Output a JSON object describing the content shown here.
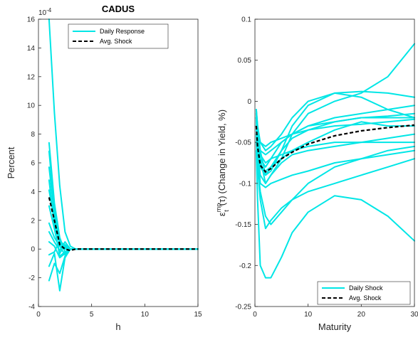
{
  "chart_data": [
    {
      "type": "line",
      "title": "CADUS",
      "xlabel": "h",
      "ylabel": "Percent",
      "y_exponent_label": "10",
      "y_exponent_power": "-4",
      "xlim": [
        0,
        15
      ],
      "ylim": [
        -4,
        16
      ],
      "xticks": [
        "0",
        "5",
        "10",
        "15"
      ],
      "yticks": [
        "-4",
        "-2",
        "0",
        "2",
        "4",
        "6",
        "8",
        "10",
        "12",
        "14",
        "16"
      ],
      "xtick_values": [
        0,
        5,
        10,
        15
      ],
      "ytick_values": [
        -4,
        -2,
        0,
        2,
        4,
        6,
        8,
        10,
        12,
        14,
        16
      ],
      "legend_position": "top-center",
      "series_color": "#00e6e6",
      "avg_color": "#000000",
      "legend": [
        {
          "label": "Daily Response",
          "style": "solid",
          "color": "#00e6e6"
        },
        {
          "label": "Avg. Shock",
          "style": "dashed",
          "color": "#000000"
        }
      ],
      "series": [
        {
          "x": [
            1,
            1.5,
            2,
            2.5,
            3,
            3.5,
            4,
            15
          ],
          "y": [
            16,
            9.5,
            4.4,
            1.2,
            0.2,
            0,
            0,
            0
          ]
        },
        {
          "x": [
            1,
            1.5,
            2,
            2.5,
            3,
            3.5,
            4,
            15
          ],
          "y": [
            7.4,
            3.2,
            0.8,
            -0.2,
            0,
            0,
            0,
            0
          ]
        },
        {
          "x": [
            1,
            1.5,
            2,
            2.5,
            3,
            3.5,
            4,
            15
          ],
          "y": [
            6.8,
            2.8,
            0.5,
            0.1,
            0,
            0,
            0,
            0
          ]
        },
        {
          "x": [
            1,
            1.5,
            2,
            2.5,
            3,
            3.5,
            4,
            15
          ],
          "y": [
            5.7,
            2.4,
            0.4,
            0.2,
            0,
            0,
            0,
            0
          ]
        },
        {
          "x": [
            1,
            1.5,
            2,
            2.5,
            3,
            3.5,
            4,
            15
          ],
          "y": [
            4.8,
            1.6,
            -0.5,
            -0.2,
            0,
            0,
            0,
            0
          ]
        },
        {
          "x": [
            1,
            1.5,
            2,
            2.5,
            3,
            3.5,
            4,
            15
          ],
          "y": [
            4.1,
            2.0,
            0.3,
            0,
            0,
            0,
            0,
            0
          ]
        },
        {
          "x": [
            1,
            1.5,
            2,
            2.5,
            3,
            3.5,
            4,
            15
          ],
          "y": [
            3.0,
            1.4,
            -0.3,
            0.3,
            0,
            0,
            0,
            0
          ]
        },
        {
          "x": [
            1,
            1.5,
            2,
            2.5,
            3,
            3.5,
            4,
            15
          ],
          "y": [
            1.8,
            0.8,
            0.2,
            -0.4,
            0,
            0,
            0,
            0
          ]
        },
        {
          "x": [
            1,
            1.5,
            2,
            2.5,
            3,
            3.5,
            4,
            15
          ],
          "y": [
            1.2,
            0.5,
            -0.1,
            0.5,
            0,
            0,
            0,
            0
          ]
        },
        {
          "x": [
            1,
            1.5,
            2,
            2.5,
            3,
            3.5,
            4,
            15
          ],
          "y": [
            0.5,
            0.2,
            -0.6,
            -0.3,
            0,
            0,
            0,
            0
          ]
        },
        {
          "x": [
            1,
            1.5,
            2,
            2.5,
            3,
            3.5,
            4,
            15
          ],
          "y": [
            -0.4,
            -0.2,
            0.6,
            0.2,
            0,
            0,
            0,
            0
          ]
        },
        {
          "x": [
            1,
            1.5,
            2,
            2.5,
            3,
            3.5,
            4,
            15
          ],
          "y": [
            -1.2,
            -0.3,
            -2.9,
            -0.6,
            0,
            0,
            0,
            0
          ]
        },
        {
          "x": [
            1,
            1.5,
            2,
            2.5,
            3,
            3.5,
            4,
            15
          ],
          "y": [
            -2.2,
            -1.0,
            -1.7,
            -0.5,
            0,
            0,
            0,
            0
          ]
        }
      ],
      "avg": {
        "x": [
          1,
          1.5,
          2,
          2.5,
          3,
          3.5,
          4,
          15
        ],
        "y": [
          3.6,
          2.0,
          0.3,
          0,
          -0.1,
          0,
          0,
          0
        ]
      }
    },
    {
      "type": "line",
      "title": "",
      "xlabel": "Maturity",
      "ylabel": "(Change in Yield, %)",
      "ylabel_symbol": "ε",
      "ylabel_sup": "mp",
      "ylabel_sub": "t",
      "ylabel_arg": "(τ)",
      "xlim": [
        0,
        30
      ],
      "ylim": [
        -0.25,
        0.1
      ],
      "xticks": [
        "0",
        "10",
        "20",
        "30"
      ],
      "yticks": [
        "-0.25",
        "-0.2",
        "-0.15",
        "-0.1",
        "-0.05",
        "0",
        "0.05",
        "0.1"
      ],
      "xtick_values": [
        0,
        10,
        20,
        30
      ],
      "ytick_values": [
        -0.25,
        -0.2,
        -0.15,
        -0.1,
        -0.05,
        0,
        0.05,
        0.1
      ],
      "legend_position": "bottom-right",
      "series_color": "#00e6e6",
      "avg_color": "#000000",
      "legend": [
        {
          "label": "Daily Shock",
          "style": "solid",
          "color": "#00e6e6"
        },
        {
          "label": "Avg. Shock",
          "style": "dashed",
          "color": "#000000"
        }
      ],
      "series": [
        {
          "x": [
            0.25,
            0.5,
            1,
            2,
            3,
            5,
            7,
            10,
            15,
            20,
            25,
            30
          ],
          "y": [
            -0.01,
            -0.03,
            -0.06,
            -0.09,
            -0.085,
            -0.06,
            -0.03,
            -0.005,
            0.01,
            0.012,
            0.01,
            0.005
          ]
        },
        {
          "x": [
            0.25,
            0.5,
            1,
            2,
            3,
            5,
            7,
            10,
            15,
            20,
            25,
            30
          ],
          "y": [
            -0.015,
            -0.04,
            -0.07,
            -0.1,
            -0.09,
            -0.07,
            -0.04,
            -0.015,
            0,
            0.01,
            0.03,
            0.07
          ]
        },
        {
          "x": [
            0.25,
            0.5,
            1,
            2,
            3,
            5,
            7,
            10,
            15,
            20,
            25,
            30
          ],
          "y": [
            -0.02,
            -0.04,
            -0.06,
            -0.065,
            -0.06,
            -0.05,
            -0.04,
            -0.03,
            -0.02,
            -0.015,
            -0.01,
            -0.005
          ]
        },
        {
          "x": [
            0.25,
            0.5,
            1,
            2,
            3,
            5,
            7,
            10,
            15,
            20,
            25,
            30
          ],
          "y": [
            -0.02,
            -0.05,
            -0.08,
            -0.09,
            -0.08,
            -0.06,
            -0.045,
            -0.035,
            -0.025,
            -0.02,
            -0.018,
            -0.015
          ]
        },
        {
          "x": [
            0.25,
            0.5,
            1,
            2,
            3,
            5,
            7,
            10,
            15,
            20,
            25,
            30
          ],
          "y": [
            -0.03,
            -0.05,
            -0.07,
            -0.08,
            -0.07,
            -0.05,
            -0.04,
            -0.03,
            -0.025,
            -0.02,
            -0.02,
            -0.02
          ]
        },
        {
          "x": [
            0.25,
            0.5,
            1,
            2,
            3,
            5,
            7,
            10,
            15,
            20,
            25,
            30
          ],
          "y": [
            -0.03,
            -0.06,
            -0.09,
            -0.1,
            -0.09,
            -0.075,
            -0.065,
            -0.06,
            -0.055,
            -0.05,
            -0.045,
            -0.04
          ]
        },
        {
          "x": [
            0.25,
            0.5,
            1,
            2,
            3,
            5,
            7,
            10,
            15,
            20,
            25,
            30
          ],
          "y": [
            -0.04,
            -0.06,
            -0.08,
            -0.085,
            -0.08,
            -0.07,
            -0.06,
            -0.055,
            -0.05,
            -0.05,
            -0.05,
            -0.05
          ]
        },
        {
          "x": [
            0.25,
            0.5,
            1,
            2,
            3,
            5,
            7,
            10,
            15,
            20,
            25,
            30
          ],
          "y": [
            -0.02,
            -0.06,
            -0.1,
            -0.105,
            -0.1,
            -0.095,
            -0.09,
            -0.085,
            -0.075,
            -0.07,
            -0.065,
            -0.06
          ]
        },
        {
          "x": [
            0.25,
            0.5,
            1,
            2,
            3,
            5,
            7,
            10,
            15,
            20,
            25,
            30
          ],
          "y": [
            -0.05,
            -0.08,
            -0.11,
            -0.14,
            -0.15,
            -0.135,
            -0.12,
            -0.1,
            -0.08,
            -0.07,
            -0.06,
            -0.055
          ]
        },
        {
          "x": [
            0.25,
            0.5,
            1,
            2,
            3,
            5,
            7,
            10,
            15,
            20,
            25,
            30
          ],
          "y": [
            -0.04,
            -0.08,
            -0.12,
            -0.155,
            -0.145,
            -0.13,
            -0.12,
            -0.11,
            -0.1,
            -0.09,
            -0.08,
            -0.07
          ]
        },
        {
          "x": [
            0.25,
            0.5,
            1,
            2,
            3,
            5,
            7,
            10,
            15,
            20,
            25,
            30
          ],
          "y": [
            -0.06,
            -0.12,
            -0.2,
            -0.215,
            -0.215,
            -0.19,
            -0.16,
            -0.135,
            -0.115,
            -0.12,
            -0.14,
            -0.17
          ]
        },
        {
          "x": [
            0.25,
            0.5,
            1,
            2,
            3,
            5,
            7,
            10,
            15,
            20,
            25,
            30
          ],
          "y": [
            -0.02,
            -0.04,
            -0.05,
            -0.06,
            -0.055,
            -0.04,
            -0.02,
            0,
            0.01,
            0.005,
            -0.01,
            -0.02
          ]
        },
        {
          "x": [
            0.25,
            0.5,
            1,
            2,
            3,
            5,
            7,
            10,
            15,
            20,
            25,
            30
          ],
          "y": [
            -0.01,
            -0.03,
            -0.05,
            -0.055,
            -0.05,
            -0.045,
            -0.04,
            -0.035,
            -0.03,
            -0.028,
            -0.025,
            -0.022
          ]
        },
        {
          "x": [
            0.25,
            0.5,
            1,
            2,
            3,
            5,
            7,
            10,
            15,
            20,
            25,
            30
          ],
          "y": [
            -0.03,
            -0.05,
            -0.065,
            -0.075,
            -0.07,
            -0.065,
            -0.06,
            -0.05,
            -0.035,
            -0.025,
            -0.03,
            -0.03
          ]
        }
      ],
      "avg": {
        "x": [
          0.25,
          0.5,
          1,
          2,
          3,
          5,
          7,
          10,
          15,
          20,
          25,
          30
        ],
        "y": [
          -0.03,
          -0.055,
          -0.078,
          -0.086,
          -0.082,
          -0.07,
          -0.062,
          -0.052,
          -0.042,
          -0.036,
          -0.032,
          -0.029
        ]
      }
    }
  ]
}
